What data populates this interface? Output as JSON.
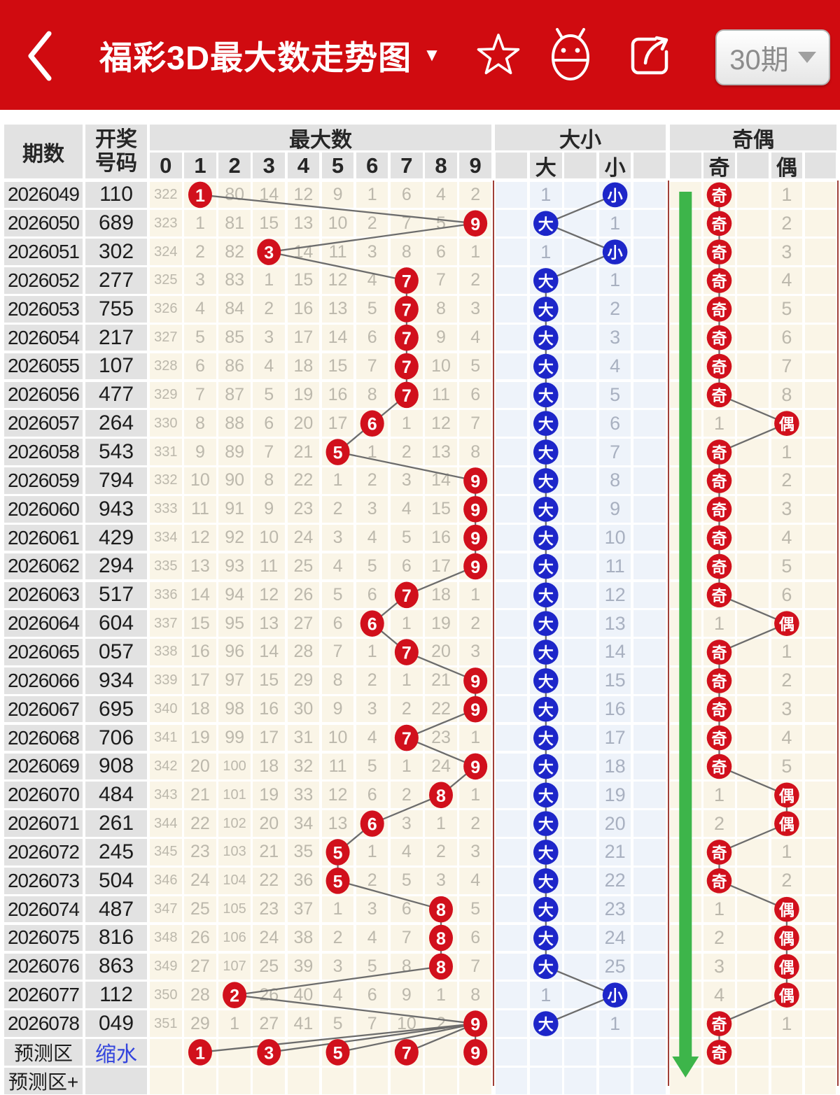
{
  "header": {
    "title": "福彩3D最大数走势图",
    "title_caret": "▼",
    "period_selector": {
      "label": "30期"
    }
  },
  "table": {
    "headers": {
      "period": "期数",
      "draw_no": [
        "开奖",
        "号码"
      ],
      "max_group": "最大数",
      "digits": [
        "0",
        "1",
        "2",
        "3",
        "4",
        "5",
        "6",
        "7",
        "8",
        "9"
      ],
      "size_group": "大小",
      "size_cols": [
        "",
        "大",
        "",
        "小",
        ""
      ],
      "parity_group": "奇偶",
      "parity_cols": [
        "",
        "奇",
        "",
        "偶",
        ""
      ]
    }
  },
  "chart_data": {
    "type": "table",
    "title": "福彩3D最大数走势图",
    "period_window": "30期",
    "columns": [
      "期数",
      "开奖号码",
      "0",
      "1",
      "2",
      "3",
      "4",
      "5",
      "6",
      "7",
      "8",
      "9",
      "大",
      "小",
      "奇",
      "偶"
    ],
    "rows": [
      {
        "period": "2026049",
        "number": "110",
        "hit": 1,
        "miss": [
          "322",
          "",
          "80",
          "14",
          "12",
          "9",
          "1",
          "6",
          "4",
          "2"
        ],
        "size": "小",
        "size_miss": "1",
        "parity": "奇",
        "parity_miss": "1"
      },
      {
        "period": "2026050",
        "number": "689",
        "hit": 9,
        "miss": [
          "323",
          "1",
          "81",
          "15",
          "13",
          "10",
          "2",
          "7",
          "5",
          ""
        ],
        "size": "大",
        "size_miss": "1",
        "parity": "奇",
        "parity_miss": "2"
      },
      {
        "period": "2026051",
        "number": "302",
        "hit": 3,
        "miss": [
          "324",
          "2",
          "82",
          "",
          "14",
          "11",
          "3",
          "8",
          "6",
          "1"
        ],
        "size": "小",
        "size_miss": "1",
        "parity": "奇",
        "parity_miss": "3"
      },
      {
        "period": "2026052",
        "number": "277",
        "hit": 7,
        "miss": [
          "325",
          "3",
          "83",
          "1",
          "15",
          "12",
          "4",
          "",
          "7",
          "2"
        ],
        "size": "大",
        "size_miss": "1",
        "parity": "奇",
        "parity_miss": "4"
      },
      {
        "period": "2026053",
        "number": "755",
        "hit": 7,
        "miss": [
          "326",
          "4",
          "84",
          "2",
          "16",
          "13",
          "5",
          "",
          "8",
          "3"
        ],
        "size": "大",
        "size_miss": "2",
        "parity": "奇",
        "parity_miss": "5"
      },
      {
        "period": "2026054",
        "number": "217",
        "hit": 7,
        "miss": [
          "327",
          "5",
          "85",
          "3",
          "17",
          "14",
          "6",
          "",
          "9",
          "4"
        ],
        "size": "大",
        "size_miss": "3",
        "parity": "奇",
        "parity_miss": "6"
      },
      {
        "period": "2026055",
        "number": "107",
        "hit": 7,
        "miss": [
          "328",
          "6",
          "86",
          "4",
          "18",
          "15",
          "7",
          "",
          "10",
          "5"
        ],
        "size": "大",
        "size_miss": "4",
        "parity": "奇",
        "parity_miss": "7"
      },
      {
        "period": "2026056",
        "number": "477",
        "hit": 7,
        "miss": [
          "329",
          "7",
          "87",
          "5",
          "19",
          "16",
          "8",
          "",
          "11",
          "6"
        ],
        "size": "大",
        "size_miss": "5",
        "parity": "奇",
        "parity_miss": "8"
      },
      {
        "period": "2026057",
        "number": "264",
        "hit": 6,
        "miss": [
          "330",
          "8",
          "88",
          "6",
          "20",
          "17",
          "",
          "1",
          "12",
          "7"
        ],
        "size": "大",
        "size_miss": "6",
        "parity": "偶",
        "parity_miss": "1"
      },
      {
        "period": "2026058",
        "number": "543",
        "hit": 5,
        "miss": [
          "331",
          "9",
          "89",
          "7",
          "21",
          "",
          "1",
          "2",
          "13",
          "8"
        ],
        "size": "大",
        "size_miss": "7",
        "parity": "奇",
        "parity_miss": "1"
      },
      {
        "period": "2026059",
        "number": "794",
        "hit": 9,
        "miss": [
          "332",
          "10",
          "90",
          "8",
          "22",
          "1",
          "2",
          "3",
          "14",
          ""
        ],
        "size": "大",
        "size_miss": "8",
        "parity": "奇",
        "parity_miss": "2"
      },
      {
        "period": "2026060",
        "number": "943",
        "hit": 9,
        "miss": [
          "333",
          "11",
          "91",
          "9",
          "23",
          "2",
          "3",
          "4",
          "15",
          ""
        ],
        "size": "大",
        "size_miss": "9",
        "parity": "奇",
        "parity_miss": "3"
      },
      {
        "period": "2026061",
        "number": "429",
        "hit": 9,
        "miss": [
          "334",
          "12",
          "92",
          "10",
          "24",
          "3",
          "4",
          "5",
          "16",
          ""
        ],
        "size": "大",
        "size_miss": "10",
        "parity": "奇",
        "parity_miss": "4"
      },
      {
        "period": "2026062",
        "number": "294",
        "hit": 9,
        "miss": [
          "335",
          "13",
          "93",
          "11",
          "25",
          "4",
          "5",
          "6",
          "17",
          ""
        ],
        "size": "大",
        "size_miss": "11",
        "parity": "奇",
        "parity_miss": "5"
      },
      {
        "period": "2026063",
        "number": "517",
        "hit": 7,
        "miss": [
          "336",
          "14",
          "94",
          "12",
          "26",
          "5",
          "6",
          "",
          "18",
          "1"
        ],
        "size": "大",
        "size_miss": "12",
        "parity": "奇",
        "parity_miss": "6"
      },
      {
        "period": "2026064",
        "number": "604",
        "hit": 6,
        "miss": [
          "337",
          "15",
          "95",
          "13",
          "27",
          "6",
          "",
          "1",
          "19",
          "2"
        ],
        "size": "大",
        "size_miss": "13",
        "parity": "偶",
        "parity_miss": "1"
      },
      {
        "period": "2026065",
        "number": "057",
        "hit": 7,
        "miss": [
          "338",
          "16",
          "96",
          "14",
          "28",
          "7",
          "1",
          "",
          "20",
          "3"
        ],
        "size": "大",
        "size_miss": "14",
        "parity": "奇",
        "parity_miss": "1"
      },
      {
        "period": "2026066",
        "number": "934",
        "hit": 9,
        "miss": [
          "339",
          "17",
          "97",
          "15",
          "29",
          "8",
          "2",
          "1",
          "21",
          ""
        ],
        "size": "大",
        "size_miss": "15",
        "parity": "奇",
        "parity_miss": "2"
      },
      {
        "period": "2026067",
        "number": "695",
        "hit": 9,
        "miss": [
          "340",
          "18",
          "98",
          "16",
          "30",
          "9",
          "3",
          "2",
          "22",
          ""
        ],
        "size": "大",
        "size_miss": "16",
        "parity": "奇",
        "parity_miss": "3"
      },
      {
        "period": "2026068",
        "number": "706",
        "hit": 7,
        "miss": [
          "341",
          "19",
          "99",
          "17",
          "31",
          "10",
          "4",
          "",
          "23",
          "1"
        ],
        "size": "大",
        "size_miss": "17",
        "parity": "奇",
        "parity_miss": "4"
      },
      {
        "period": "2026069",
        "number": "908",
        "hit": 9,
        "miss": [
          "342",
          "20",
          "100",
          "18",
          "32",
          "11",
          "5",
          "1",
          "24",
          ""
        ],
        "size": "大",
        "size_miss": "18",
        "parity": "奇",
        "parity_miss": "5"
      },
      {
        "period": "2026070",
        "number": "484",
        "hit": 8,
        "miss": [
          "343",
          "21",
          "101",
          "19",
          "33",
          "12",
          "6",
          "2",
          "",
          "1"
        ],
        "size": "大",
        "size_miss": "19",
        "parity": "偶",
        "parity_miss": "1"
      },
      {
        "period": "2026071",
        "number": "261",
        "hit": 6,
        "miss": [
          "344",
          "22",
          "102",
          "20",
          "34",
          "13",
          "",
          "3",
          "1",
          "2"
        ],
        "size": "大",
        "size_miss": "20",
        "parity": "偶",
        "parity_miss": "2"
      },
      {
        "period": "2026072",
        "number": "245",
        "hit": 5,
        "miss": [
          "345",
          "23",
          "103",
          "21",
          "35",
          "",
          "1",
          "4",
          "2",
          "3"
        ],
        "size": "大",
        "size_miss": "21",
        "parity": "奇",
        "parity_miss": "1"
      },
      {
        "period": "2026073",
        "number": "504",
        "hit": 5,
        "miss": [
          "346",
          "24",
          "104",
          "22",
          "36",
          "",
          "2",
          "5",
          "3",
          "4"
        ],
        "size": "大",
        "size_miss": "22",
        "parity": "奇",
        "parity_miss": "2"
      },
      {
        "period": "2026074",
        "number": "487",
        "hit": 8,
        "miss": [
          "347",
          "25",
          "105",
          "23",
          "37",
          "1",
          "3",
          "6",
          "",
          "5"
        ],
        "size": "大",
        "size_miss": "23",
        "parity": "偶",
        "parity_miss": "1"
      },
      {
        "period": "2026075",
        "number": "816",
        "hit": 8,
        "miss": [
          "348",
          "26",
          "106",
          "24",
          "38",
          "2",
          "4",
          "7",
          "",
          "6"
        ],
        "size": "大",
        "size_miss": "24",
        "parity": "偶",
        "parity_miss": "2"
      },
      {
        "period": "2026076",
        "number": "863",
        "hit": 8,
        "miss": [
          "349",
          "27",
          "107",
          "25",
          "39",
          "3",
          "5",
          "8",
          "",
          "7"
        ],
        "size": "大",
        "size_miss": "25",
        "parity": "偶",
        "parity_miss": "3"
      },
      {
        "period": "2026077",
        "number": "112",
        "hit": 2,
        "miss": [
          "350",
          "28",
          "",
          "26",
          "40",
          "4",
          "6",
          "9",
          "1",
          "8"
        ],
        "size": "小",
        "size_miss": "1",
        "parity": "偶",
        "parity_miss": "4"
      },
      {
        "period": "2026078",
        "number": "049",
        "hit": 9,
        "miss": [
          "351",
          "29",
          "1",
          "27",
          "41",
          "5",
          "7",
          "10",
          "2",
          ""
        ],
        "size": "大",
        "size_miss": "1",
        "parity": "奇",
        "parity_miss": "1"
      }
    ],
    "prediction_row": {
      "label": "预测区",
      "action_link": "缩水",
      "predicted_digits": [
        1,
        3,
        5,
        7,
        9
      ],
      "predicted_parity": "奇"
    },
    "footer_row_label": "预测区+"
  },
  "colors": {
    "app_red": "#d00b10",
    "marker_red": "#d1101c",
    "marker_blue": "#1d26c9",
    "arrow_green": "#3db54a",
    "section_line": "#a04038",
    "connector_gray": "#6c6c6c",
    "link_blue": "#3344dd",
    "cream_bg": "#faf5e7",
    "blue_bg": "#eef3fa",
    "head_gray": "#e2e2e2"
  }
}
